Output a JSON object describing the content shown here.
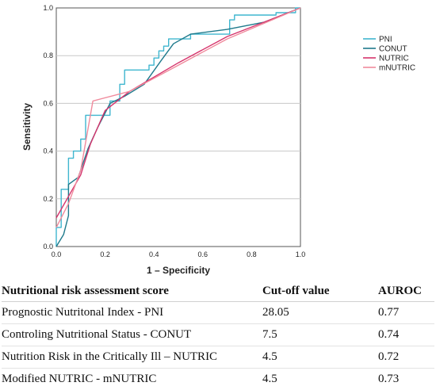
{
  "chart_data": {
    "type": "line",
    "xlabel": "1 – Specificity",
    "ylabel": "Sensitivity",
    "xlim": [
      0,
      1
    ],
    "ylim": [
      0,
      1
    ],
    "x_ticks": [
      "0.0",
      "0.2",
      "0.4",
      "0.6",
      "0.8",
      "1.0"
    ],
    "y_ticks": [
      "0.0",
      "0.2",
      "0.4",
      "0.6",
      "0.8",
      "1.0"
    ],
    "grid": "horizontal",
    "legend_position": "right",
    "series": [
      {
        "name": "PNI",
        "color": "#3fb6cf",
        "points": [
          [
            0,
            0
          ],
          [
            0,
            0.08
          ],
          [
            0.02,
            0.08
          ],
          [
            0.02,
            0.24
          ],
          [
            0.05,
            0.24
          ],
          [
            0.05,
            0.37
          ],
          [
            0.07,
            0.37
          ],
          [
            0.07,
            0.4
          ],
          [
            0.1,
            0.4
          ],
          [
            0.1,
            0.45
          ],
          [
            0.12,
            0.45
          ],
          [
            0.12,
            0.55
          ],
          [
            0.22,
            0.55
          ],
          [
            0.22,
            0.61
          ],
          [
            0.26,
            0.61
          ],
          [
            0.26,
            0.68
          ],
          [
            0.28,
            0.68
          ],
          [
            0.28,
            0.74
          ],
          [
            0.38,
            0.74
          ],
          [
            0.38,
            0.76
          ],
          [
            0.4,
            0.76
          ],
          [
            0.4,
            0.79
          ],
          [
            0.42,
            0.79
          ],
          [
            0.42,
            0.82
          ],
          [
            0.44,
            0.82
          ],
          [
            0.44,
            0.84
          ],
          [
            0.46,
            0.84
          ],
          [
            0.46,
            0.87
          ],
          [
            0.55,
            0.87
          ],
          [
            0.55,
            0.89
          ],
          [
            0.71,
            0.89
          ],
          [
            0.71,
            0.95
          ],
          [
            0.73,
            0.95
          ],
          [
            0.73,
            0.97
          ],
          [
            0.9,
            0.97
          ],
          [
            0.9,
            0.98
          ],
          [
            0.98,
            0.98
          ],
          [
            0.98,
            1.0
          ],
          [
            1.0,
            1.0
          ]
        ]
      },
      {
        "name": "CONUT",
        "color": "#1f7a8c",
        "points": [
          [
            0,
            0
          ],
          [
            0.03,
            0.05
          ],
          [
            0.05,
            0.13
          ],
          [
            0.05,
            0.26
          ],
          [
            0.09,
            0.29
          ],
          [
            0.13,
            0.41
          ],
          [
            0.17,
            0.5
          ],
          [
            0.22,
            0.6
          ],
          [
            0.28,
            0.63
          ],
          [
            0.36,
            0.68
          ],
          [
            0.43,
            0.78
          ],
          [
            0.48,
            0.85
          ],
          [
            0.55,
            0.89
          ],
          [
            0.7,
            0.91
          ],
          [
            0.85,
            0.94
          ],
          [
            0.95,
            0.98
          ],
          [
            1.0,
            1.0
          ]
        ]
      },
      {
        "name": "NUTRIC",
        "color": "#d6336c",
        "points": [
          [
            0,
            0.12
          ],
          [
            0.05,
            0.21
          ],
          [
            0.1,
            0.3
          ],
          [
            0.14,
            0.43
          ],
          [
            0.2,
            0.57
          ],
          [
            0.3,
            0.65
          ],
          [
            0.5,
            0.77
          ],
          [
            0.7,
            0.88
          ],
          [
            1.0,
            1.0
          ]
        ]
      },
      {
        "name": "mNUTRIC",
        "color": "#f08a9c",
        "points": [
          [
            0,
            0.08
          ],
          [
            0.05,
            0.18
          ],
          [
            0.1,
            0.32
          ],
          [
            0.15,
            0.61
          ],
          [
            0.3,
            0.65
          ],
          [
            0.5,
            0.76
          ],
          [
            0.7,
            0.87
          ],
          [
            1.0,
            1.0
          ]
        ]
      }
    ]
  },
  "table": {
    "headers": [
      "Nutritional risk assessment score",
      "Cut-off value",
      "AUROC"
    ],
    "rows": [
      [
        "Prognostic Nutritonal Index - PNI",
        "28.05",
        "0.77"
      ],
      [
        "Controling Nutritional Status - CONUT",
        "7.5",
        "0.74"
      ],
      [
        "Nutrition Risk in the Critically Ill – NUTRIC",
        "4.5",
        "0.72"
      ],
      [
        "Modified NUTRIC - mNUTRIC",
        "4.5",
        "0.73"
      ]
    ]
  }
}
